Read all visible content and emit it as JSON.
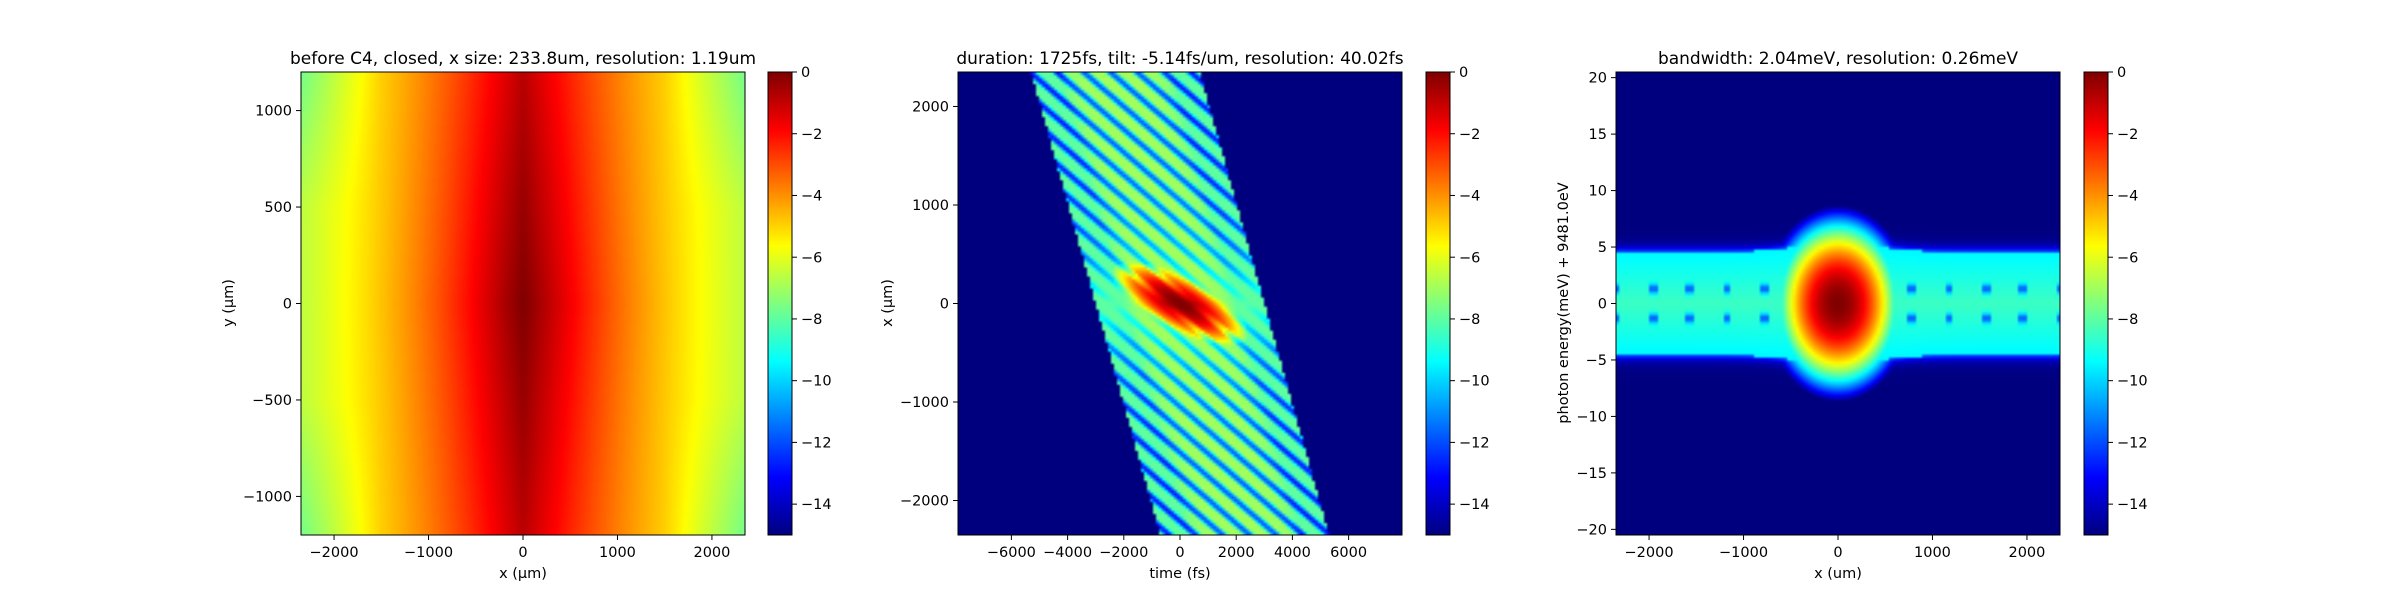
{
  "colormap": [
    "#00007f",
    "#0000ff",
    "#007fff",
    "#00ffff",
    "#7fff7f",
    "#ffff00",
    "#ff7f00",
    "#ff0000",
    "#7f0000"
  ],
  "chart_data": [
    {
      "type": "heatmap",
      "title": "before C4, closed, x size: 233.8um, resolution: 1.19um",
      "xlabel": "x (μm)",
      "ylabel": "y (μm)",
      "xlim": [
        -2350,
        2350
      ],
      "ylim": [
        -1200,
        1200
      ],
      "xticks": [
        {
          "v": -2000,
          "t": "−2000"
        },
        {
          "v": -1000,
          "t": "−1000"
        },
        {
          "v": 0,
          "t": "0"
        },
        {
          "v": 1000,
          "t": "1000"
        },
        {
          "v": 2000,
          "t": "2000"
        }
      ],
      "yticks": [
        {
          "v": -1000,
          "t": "−1000"
        },
        {
          "v": -500,
          "t": "−500"
        },
        {
          "v": 0,
          "t": "0"
        },
        {
          "v": 500,
          "t": "500"
        },
        {
          "v": 1000,
          "t": "1000"
        }
      ],
      "colorbar": {
        "range": [
          -15,
          0
        ],
        "ticks": [
          {
            "v": 0,
            "t": "0"
          },
          {
            "v": -2,
            "t": "−2"
          },
          {
            "v": -4,
            "t": "−4"
          },
          {
            "v": -6,
            "t": "−6"
          },
          {
            "v": -8,
            "t": "−8"
          },
          {
            "v": -10,
            "t": "−10"
          },
          {
            "v": -12,
            "t": "−12"
          },
          {
            "v": -14,
            "t": "−14"
          }
        ]
      }
    },
    {
      "type": "heatmap",
      "title": "duration: 1725fs, tilt: -5.14fs/um, resolution: 40.02fs",
      "xlabel": "time (fs)",
      "ylabel": "x (μm)",
      "xlim": [
        -7900,
        7900
      ],
      "ylim": [
        -2350,
        2350
      ],
      "xticks": [
        {
          "v": -6000,
          "t": "−6000"
        },
        {
          "v": -4000,
          "t": "−4000"
        },
        {
          "v": -2000,
          "t": "−2000"
        },
        {
          "v": 0,
          "t": "0"
        },
        {
          "v": 2000,
          "t": "2000"
        },
        {
          "v": 4000,
          "t": "4000"
        },
        {
          "v": 6000,
          "t": "6000"
        }
      ],
      "yticks": [
        {
          "v": -2000,
          "t": "−2000"
        },
        {
          "v": -1000,
          "t": "−1000"
        },
        {
          "v": 0,
          "t": "0"
        },
        {
          "v": 1000,
          "t": "1000"
        },
        {
          "v": 2000,
          "t": "2000"
        }
      ],
      "colorbar": {
        "range": [
          -15,
          0
        ],
        "ticks": [
          {
            "v": 0,
            "t": "0"
          },
          {
            "v": -2,
            "t": "−2"
          },
          {
            "v": -4,
            "t": "−4"
          },
          {
            "v": -6,
            "t": "−6"
          },
          {
            "v": -8,
            "t": "−8"
          },
          {
            "v": -10,
            "t": "−10"
          },
          {
            "v": -12,
            "t": "−12"
          },
          {
            "v": -14,
            "t": "−14"
          }
        ]
      }
    },
    {
      "type": "heatmap",
      "title": "bandwidth: 2.04meV, resolution: 0.26meV",
      "xlabel": "x (um)",
      "ylabel": "photon energy(meV) + 9481.0eV",
      "xlim": [
        -2350,
        2350
      ],
      "ylim": [
        -20.5,
        20.5
      ],
      "xticks": [
        {
          "v": -2000,
          "t": "−2000"
        },
        {
          "v": -1000,
          "t": "−1000"
        },
        {
          "v": 0,
          "t": "0"
        },
        {
          "v": 1000,
          "t": "1000"
        },
        {
          "v": 2000,
          "t": "2000"
        }
      ],
      "yticks": [
        {
          "v": -20,
          "t": "−20"
        },
        {
          "v": -15,
          "t": "−15"
        },
        {
          "v": -10,
          "t": "−10"
        },
        {
          "v": -5,
          "t": "−5"
        },
        {
          "v": 0,
          "t": "0"
        },
        {
          "v": 5,
          "t": "5"
        },
        {
          "v": 10,
          "t": "10"
        },
        {
          "v": 15,
          "t": "15"
        },
        {
          "v": 20,
          "t": "20"
        }
      ],
      "colorbar": {
        "range": [
          -15,
          0
        ],
        "ticks": [
          {
            "v": 0,
            "t": "0"
          },
          {
            "v": -2,
            "t": "−2"
          },
          {
            "v": -4,
            "t": "−4"
          },
          {
            "v": -6,
            "t": "−6"
          },
          {
            "v": -8,
            "t": "−8"
          },
          {
            "v": -10,
            "t": "−10"
          },
          {
            "v": -12,
            "t": "−12"
          },
          {
            "v": -14,
            "t": "−14"
          }
        ]
      }
    }
  ]
}
